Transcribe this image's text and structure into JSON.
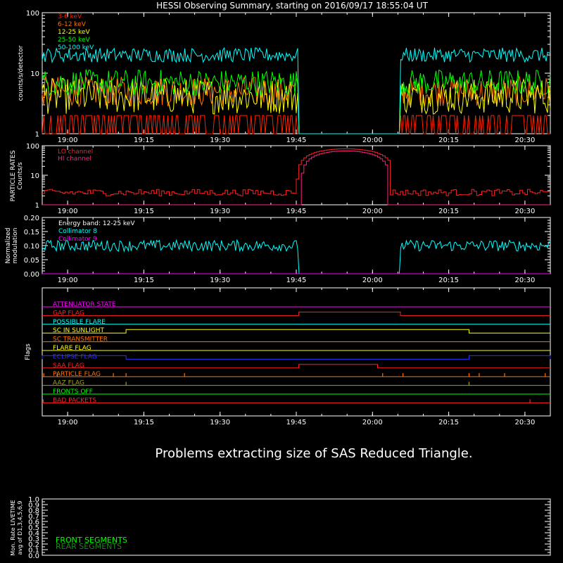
{
  "title": "HESSI Observing Summary, starting on 2016/09/17 18:55:04 UT",
  "time_ticks": [
    "19:00",
    "19:15",
    "19:30",
    "19:45",
    "20:00",
    "20:15",
    "20:30"
  ],
  "time_tick_minutes": [
    5,
    20,
    35,
    50,
    65,
    80,
    95
  ],
  "time_range_minutes": [
    0,
    100
  ],
  "gap_minutes": [
    50.5,
    70.5
  ],
  "chart_data": [
    {
      "type": "line",
      "panel": "count-rates",
      "ylabel": "counts/s/detector",
      "yscale": "log",
      "ylim": [
        1,
        100
      ],
      "yticks": [
        "1",
        "10",
        "100"
      ],
      "series": [
        {
          "name": "3-6 keV",
          "color": "#ff2000",
          "level": 1.6,
          "spread": 0.45
        },
        {
          "name": "6-12 keV",
          "color": "#ff7000",
          "level": 5.0,
          "spread": 0.25
        },
        {
          "name": "12-25 keV",
          "color": "#ffff00",
          "level": 4.2,
          "spread": 0.3
        },
        {
          "name": "25-50 keV",
          "color": "#00ff00",
          "level": 7.0,
          "spread": 0.22
        },
        {
          "name": "50-100 keV",
          "color": "#00ffff",
          "level": 20.0,
          "spread": 0.12
        }
      ]
    },
    {
      "type": "line",
      "panel": "particle-rates",
      "ylabel": "PARTICLE RATES Counts/s",
      "ylabel_lines": [
        "PARTICLE RATES",
        "Counts/s"
      ],
      "yscale": "log",
      "ylim": [
        1,
        100
      ],
      "yticks": [
        "1",
        "10",
        "100"
      ],
      "series": [
        {
          "name": "LO channel",
          "color": "#ff2020"
        },
        {
          "name": "HI channel",
          "color": "#ff2080"
        }
      ],
      "lo_baseline": 2.6,
      "peak": {
        "center_minutes": 59.5,
        "value": 78,
        "start_minutes": 50.5,
        "end_minutes": 68.0
      }
    },
    {
      "type": "line",
      "panel": "modulation",
      "ylabel": "Normalized modulation",
      "ylabel_lines": [
        "Normalized",
        "modulation"
      ],
      "ylim": [
        0,
        0.2
      ],
      "yticks": [
        "0.00",
        "0.05",
        "0.10",
        "0.15",
        "0.20"
      ],
      "annotation": "Energy band: 12-25 keV",
      "series": [
        {
          "name": "Collimator 8",
          "color": "#00ffff",
          "level": 0.1
        },
        {
          "name": "Collimator 9",
          "color": "#ff00ff",
          "level": 0.0
        }
      ]
    },
    {
      "type": "line",
      "panel": "flags",
      "ylabel": "Flags",
      "flags": [
        {
          "name": "ATTENUATOR STATE",
          "color": "#ff00ff",
          "on": []
        },
        {
          "name": "GAP FLAG",
          "color": "#ff2020",
          "on": [
            [
              50.5,
              70.5
            ]
          ]
        },
        {
          "name": "POSSIBLE FLARE",
          "color": "#00ffff",
          "on": []
        },
        {
          "name": "SC IN SUNLIGHT",
          "color": "#ffff00",
          "on": [
            [
              16.5,
              84.0
            ]
          ]
        },
        {
          "name": "SC TRANSMITTER",
          "color": "#ff7000",
          "on": []
        },
        {
          "name": "FLARE FLAG",
          "color": "#ffff00",
          "on": []
        },
        {
          "name": "ECLIPSE FLAG",
          "color": "#3030ff",
          "on": [
            [
              0,
              16.5
            ],
            [
              84.0,
              100
            ]
          ]
        },
        {
          "name": "SAA FLAG",
          "color": "#ff2020",
          "on": [
            [
              50.5,
              66.0
            ]
          ]
        },
        {
          "name": "PARTICLE FLAG",
          "color": "#ff7000",
          "spikes": [
            0.3,
            3.0,
            14.0,
            16.5,
            28.0,
            67.0,
            71.0,
            84.0,
            86.0,
            91.0,
            99.0
          ]
        },
        {
          "name": "AAZ FLAG",
          "color": "#a0a020",
          "spikes": [
            16.5,
            84.0
          ]
        },
        {
          "name": "FRONTS OFF",
          "color": "#00ff00",
          "on": []
        },
        {
          "name": "BAD PACKETS",
          "color": "#ff2020",
          "spikes": [
            0.2,
            96.0
          ]
        }
      ]
    },
    {
      "type": "line",
      "panel": "livetime",
      "ylabel": "Mon. Rate LIVETIME avg of D1,3,4,5,6,9",
      "ylabel_lines": [
        "Mon. Rate LIVETIME",
        "avg of D1,3,4,5,6,9"
      ],
      "ylim": [
        0,
        1.0
      ],
      "yticks": [
        "0.0",
        "0.1",
        "0.2",
        "0.3",
        "0.4",
        "0.5",
        "0.6",
        "0.7",
        "0.8",
        "0.9",
        "1.0"
      ],
      "series": [
        {
          "name": "FRONT SEGMENTS",
          "color": "#00ff00"
        },
        {
          "name": "REAR SEGMENTS",
          "color": "#208020"
        }
      ]
    }
  ],
  "message": "Problems extracting size of SAS Reduced Triangle."
}
